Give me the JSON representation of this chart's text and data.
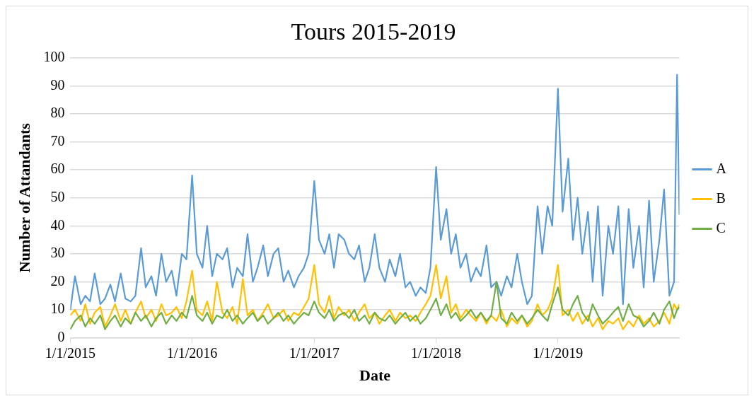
{
  "chart_data": {
    "type": "line",
    "title": "Tours 2015-2019",
    "xlabel": "Date",
    "ylabel": "Number of Attandants",
    "x": [
      "2015-01-01",
      "2015-01-15",
      "2015-02-01",
      "2015-02-15",
      "2015-03-01",
      "2015-03-15",
      "2015-04-01",
      "2015-04-15",
      "2015-05-01",
      "2015-05-15",
      "2015-06-01",
      "2015-06-15",
      "2015-07-01",
      "2015-07-15",
      "2015-08-01",
      "2015-08-15",
      "2015-09-01",
      "2015-09-15",
      "2015-10-01",
      "2015-10-15",
      "2015-11-01",
      "2015-11-15",
      "2015-12-01",
      "2015-12-15",
      "2016-01-01",
      "2016-01-15",
      "2016-02-01",
      "2016-02-15",
      "2016-03-01",
      "2016-03-15",
      "2016-04-01",
      "2016-04-15",
      "2016-05-01",
      "2016-05-15",
      "2016-06-01",
      "2016-06-15",
      "2016-07-01",
      "2016-07-15",
      "2016-08-01",
      "2016-08-15",
      "2016-09-01",
      "2016-09-15",
      "2016-10-01",
      "2016-10-15",
      "2016-11-01",
      "2016-11-15",
      "2016-12-01",
      "2016-12-15",
      "2017-01-01",
      "2017-01-15",
      "2017-02-01",
      "2017-02-15",
      "2017-03-01",
      "2017-03-15",
      "2017-04-01",
      "2017-04-15",
      "2017-05-01",
      "2017-05-15",
      "2017-06-01",
      "2017-06-15",
      "2017-07-01",
      "2017-07-15",
      "2017-08-01",
      "2017-08-15",
      "2017-09-01",
      "2017-09-15",
      "2017-10-01",
      "2017-10-15",
      "2017-11-01",
      "2017-11-15",
      "2017-12-01",
      "2017-12-15",
      "2018-01-01",
      "2018-01-15",
      "2018-02-01",
      "2018-02-15",
      "2018-03-01",
      "2018-03-15",
      "2018-04-01",
      "2018-04-15",
      "2018-05-01",
      "2018-05-15",
      "2018-06-01",
      "2018-06-15",
      "2018-07-01",
      "2018-07-15",
      "2018-08-01",
      "2018-08-15",
      "2018-09-01",
      "2018-09-15",
      "2018-10-01",
      "2018-10-15",
      "2018-11-01",
      "2018-11-15",
      "2018-12-01",
      "2018-12-15",
      "2019-01-01",
      "2019-01-15",
      "2019-02-01",
      "2019-02-15",
      "2019-03-01",
      "2019-03-15",
      "2019-04-01",
      "2019-04-15",
      "2019-05-01",
      "2019-05-15",
      "2019-06-01",
      "2019-06-15",
      "2019-07-01",
      "2019-07-15",
      "2019-08-01",
      "2019-08-15",
      "2019-09-01",
      "2019-09-15",
      "2019-10-01",
      "2019-10-15",
      "2019-11-01",
      "2019-11-15",
      "2019-12-01",
      "2019-12-15",
      "2019-12-24",
      "2019-12-31"
    ],
    "series": [
      {
        "name": "A",
        "color": "#5b9bd5",
        "values": [
          10,
          22,
          12,
          15,
          13,
          23,
          12,
          14,
          19,
          13,
          23,
          14,
          13,
          15,
          32,
          18,
          22,
          15,
          30,
          20,
          24,
          15,
          30,
          28,
          58,
          30,
          25,
          40,
          22,
          30,
          28,
          32,
          18,
          25,
          22,
          37,
          20,
          25,
          33,
          22,
          30,
          32,
          20,
          24,
          18,
          22,
          25,
          30,
          56,
          35,
          30,
          37,
          25,
          37,
          35,
          30,
          28,
          33,
          20,
          25,
          37,
          25,
          20,
          28,
          22,
          30,
          18,
          20,
          15,
          18,
          16,
          25,
          61,
          35,
          46,
          30,
          37,
          25,
          30,
          20,
          25,
          22,
          33,
          18,
          20,
          15,
          22,
          18,
          30,
          20,
          12,
          15,
          47,
          30,
          47,
          40,
          89,
          45,
          64,
          35,
          50,
          30,
          45,
          20,
          47,
          15,
          40,
          30,
          47,
          12,
          46,
          25,
          40,
          18,
          49,
          20,
          35,
          53,
          15,
          20,
          94,
          44
        ]
      },
      {
        "name": "B",
        "color": "#ffc000",
        "values": [
          8,
          10,
          6,
          12,
          5,
          9,
          11,
          4,
          8,
          12,
          6,
          10,
          5,
          9,
          13,
          7,
          10,
          6,
          12,
          8,
          9,
          11,
          7,
          13,
          24,
          10,
          8,
          13,
          6,
          20,
          9,
          7,
          11,
          5,
          21,
          8,
          10,
          6,
          9,
          12,
          7,
          8,
          10,
          6,
          9,
          8,
          11,
          14,
          26,
          12,
          9,
          15,
          7,
          11,
          8,
          10,
          6,
          9,
          12,
          7,
          9,
          5,
          8,
          10,
          6,
          9,
          7,
          8,
          6,
          9,
          12,
          15,
          26,
          14,
          22,
          9,
          12,
          7,
          10,
          8,
          6,
          9,
          5,
          8,
          6,
          10,
          4,
          7,
          5,
          8,
          4,
          6,
          12,
          8,
          10,
          14,
          26,
          8,
          10,
          6,
          9,
          5,
          8,
          4,
          7,
          3,
          6,
          5,
          7,
          3,
          6,
          4,
          8,
          5,
          7,
          4,
          6,
          9,
          5,
          12,
          10,
          12
        ]
      },
      {
        "name": "C",
        "color": "#70ad47",
        "values": [
          3,
          6,
          8,
          4,
          7,
          5,
          8,
          3,
          6,
          8,
          4,
          7,
          5,
          9,
          6,
          8,
          4,
          7,
          9,
          5,
          8,
          6,
          9,
          7,
          15,
          8,
          6,
          9,
          5,
          8,
          7,
          10,
          6,
          8,
          5,
          7,
          9,
          6,
          8,
          5,
          7,
          9,
          6,
          8,
          5,
          7,
          9,
          8,
          13,
          9,
          7,
          10,
          6,
          8,
          9,
          7,
          10,
          6,
          8,
          5,
          9,
          7,
          6,
          8,
          5,
          7,
          9,
          6,
          8,
          5,
          7,
          10,
          14,
          8,
          12,
          7,
          9,
          6,
          8,
          10,
          7,
          9,
          6,
          8,
          20,
          7,
          5,
          9,
          6,
          8,
          5,
          7,
          10,
          8,
          6,
          12,
          18,
          10,
          8,
          12,
          15,
          9,
          6,
          12,
          8,
          5,
          7,
          9,
          11,
          6,
          12,
          8,
          7,
          4,
          6,
          9,
          5,
          10,
          13,
          7,
          10,
          11
        ]
      }
    ],
    "xlim": [
      "2015-01-01",
      "2019-12-31"
    ],
    "xticks": [
      {
        "value": "2015-01-01",
        "label": "1/1/2015"
      },
      {
        "value": "2016-01-01",
        "label": "1/1/2016"
      },
      {
        "value": "2017-01-01",
        "label": "1/1/2017"
      },
      {
        "value": "2018-01-01",
        "label": "1/1/2018"
      },
      {
        "value": "2019-01-01",
        "label": "1/1/2019"
      }
    ],
    "ylim": [
      0,
      100
    ],
    "yticks": [
      0,
      10,
      20,
      30,
      40,
      50,
      60,
      70,
      80,
      90,
      100
    ],
    "grid": "y",
    "legend": "right",
    "marker": "none",
    "line_style": "solid"
  }
}
